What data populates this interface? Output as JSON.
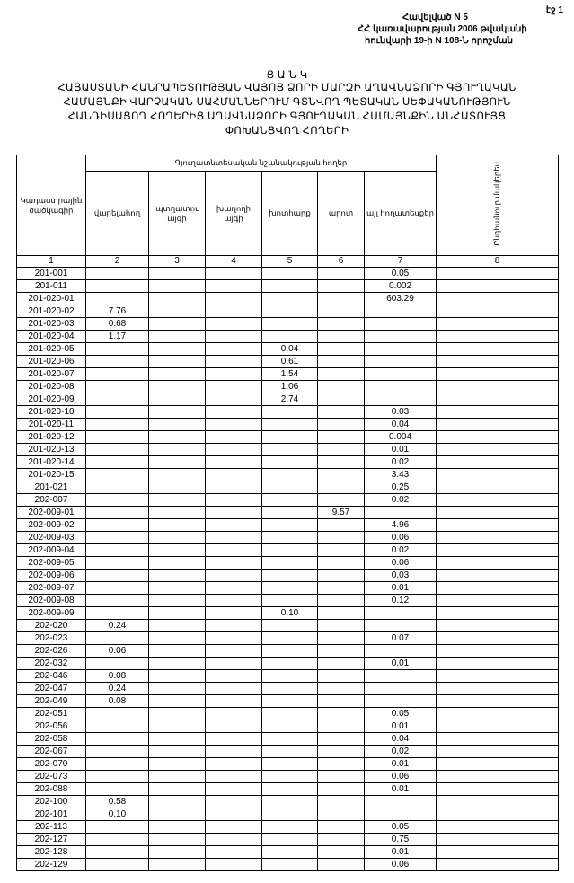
{
  "page_number": "էջ 1",
  "annex": {
    "line1": "Հավելված N 5",
    "line2": "ՀՀ կառավարության 2006 թվականի",
    "line3": "հունվարի 19-ի N 108-Ն որոշման"
  },
  "title": {
    "heading": "Ց Ա Ն Կ",
    "line1": "ՀԱՅԱՍՏԱՆԻ ՀԱՆՐԱՊԵՏՈՒԹՅԱՆ  ՎԱՅՈՑ ՁՈՐԻ ՄԱՐԶԻ ԱՂԱՎՆԱՁՈՐԻ ԳՅՈՒՂԱԿԱՆ",
    "line2": "ՀԱՄԱՅՆՔԻ ՎԱՐՉԱԿԱՆ ՍԱՀՄԱՆՆԵՐՈՒՄ  ԳՏՆՎՈՂ  ՊԵՏԱԿԱՆ ՍԵՓԱԿԱՆՈՒԹՅՈՒՆ",
    "line3": "ՀԱՆԴԻՍԱՑՈՂ ՀՈՂԵՐԻՑ ԱՂԱՎՆԱՁՈՐԻ ԳՅՈՒՂԱԿԱՆ ՀԱՄԱՅՆՔԻՆ ԱՆՀԱՏՈՒՅՑ",
    "line4": "ՓՈԽԱՆՑՎՈՂ   ՀՈՂԵՐԻ"
  },
  "table": {
    "group_header": "Գյուղատնտեսական նշանակության հողեր",
    "headers": [
      "Կադաստրային ծածկագիր",
      "վարելահող",
      "պտղատու այգի",
      "խաղողի այգի",
      "խոտհարք",
      "արոտ",
      "այլ հողատեսքեր",
      "Ընդհանուր մակերես"
    ],
    "column_numbers": [
      "1",
      "2",
      "3",
      "4",
      "5",
      "6",
      "7",
      "8"
    ],
    "rows": [
      [
        "201-001",
        "",
        "",
        "",
        "",
        "",
        "0.05",
        ""
      ],
      [
        "201-011",
        "",
        "",
        "",
        "",
        "",
        "0.002",
        ""
      ],
      [
        "201-020-01",
        "",
        "",
        "",
        "",
        "",
        "603.29",
        ""
      ],
      [
        "201-020-02",
        "7.76",
        "",
        "",
        "",
        "",
        "",
        ""
      ],
      [
        "201-020-03",
        "0.68",
        "",
        "",
        "",
        "",
        "",
        ""
      ],
      [
        "201-020-04",
        "1.17",
        "",
        "",
        "",
        "",
        "",
        ""
      ],
      [
        "201-020-05",
        "",
        "",
        "",
        "0.04",
        "",
        "",
        ""
      ],
      [
        "201-020-06",
        "",
        "",
        "",
        "0.61",
        "",
        "",
        ""
      ],
      [
        "201-020-07",
        "",
        "",
        "",
        "1.54",
        "",
        "",
        ""
      ],
      [
        "201-020-08",
        "",
        "",
        "",
        "1.06",
        "",
        "",
        ""
      ],
      [
        "201-020-09",
        "",
        "",
        "",
        "2.74",
        "",
        "",
        ""
      ],
      [
        "201-020-10",
        "",
        "",
        "",
        "",
        "",
        "0.03",
        ""
      ],
      [
        "201-020-11",
        "",
        "",
        "",
        "",
        "",
        "0.04",
        ""
      ],
      [
        "201-020-12",
        "",
        "",
        "",
        "",
        "",
        "0.004",
        ""
      ],
      [
        "201-020-13",
        "",
        "",
        "",
        "",
        "",
        "0.01",
        ""
      ],
      [
        "201-020-14",
        "",
        "",
        "",
        "",
        "",
        "0.02",
        ""
      ],
      [
        "201-020-15",
        "",
        "",
        "",
        "",
        "",
        "3.43",
        ""
      ],
      [
        "201-021",
        "",
        "",
        "",
        "",
        "",
        "0.25",
        ""
      ],
      [
        "202-007",
        "",
        "",
        "",
        "",
        "",
        "0.02",
        ""
      ],
      [
        "202-009-01",
        "",
        "",
        "",
        "",
        "9.57",
        "",
        ""
      ],
      [
        "202-009-02",
        "",
        "",
        "",
        "",
        "",
        "4.96",
        ""
      ],
      [
        "202-009-03",
        "",
        "",
        "",
        "",
        "",
        "0.06",
        ""
      ],
      [
        "202-009-04",
        "",
        "",
        "",
        "",
        "",
        "0.02",
        ""
      ],
      [
        "202-009-05",
        "",
        "",
        "",
        "",
        "",
        "0.06",
        ""
      ],
      [
        "202-009-06",
        "",
        "",
        "",
        "",
        "",
        "0.03",
        ""
      ],
      [
        "202-009-07",
        "",
        "",
        "",
        "",
        "",
        "0.01",
        ""
      ],
      [
        "202-009-08",
        "",
        "",
        "",
        "",
        "",
        "0.12",
        ""
      ],
      [
        "202-009-09",
        "",
        "",
        "",
        "0.10",
        "",
        "",
        ""
      ],
      [
        "202-020",
        "0.24",
        "",
        "",
        "",
        "",
        "",
        ""
      ],
      [
        "202-023",
        "",
        "",
        "",
        "",
        "",
        "0.07",
        ""
      ],
      [
        "202-026",
        "0.06",
        "",
        "",
        "",
        "",
        "",
        ""
      ],
      [
        "202-032",
        "",
        "",
        "",
        "",
        "",
        "0.01",
        ""
      ],
      [
        "202-046",
        "0.08",
        "",
        "",
        "",
        "",
        "",
        ""
      ],
      [
        "202-047",
        "0.24",
        "",
        "",
        "",
        "",
        "",
        ""
      ],
      [
        "202-049",
        "0.08",
        "",
        "",
        "",
        "",
        "",
        ""
      ],
      [
        "202-051",
        "",
        "",
        "",
        "",
        "",
        "0.05",
        ""
      ],
      [
        "202-056",
        "",
        "",
        "",
        "",
        "",
        "0.01",
        ""
      ],
      [
        "202-058",
        "",
        "",
        "",
        "",
        "",
        "0.04",
        ""
      ],
      [
        "202-067",
        "",
        "",
        "",
        "",
        "",
        "0.02",
        ""
      ],
      [
        "202-070",
        "",
        "",
        "",
        "",
        "",
        "0.01",
        ""
      ],
      [
        "202-073",
        "",
        "",
        "",
        "",
        "",
        "0.06",
        ""
      ],
      [
        "202-088",
        "",
        "",
        "",
        "",
        "",
        "0.01",
        ""
      ],
      [
        "202-100",
        "0.58",
        "",
        "",
        "",
        "",
        "",
        ""
      ],
      [
        "202-101",
        "0.10",
        "",
        "",
        "",
        "",
        "",
        ""
      ],
      [
        "202-113",
        "",
        "",
        "",
        "",
        "",
        "0.05",
        ""
      ],
      [
        "202-127",
        "",
        "",
        "",
        "",
        "",
        "0.75",
        ""
      ],
      [
        "202-128",
        "",
        "",
        "",
        "",
        "",
        "0.01",
        ""
      ],
      [
        "202-129",
        "",
        "",
        "",
        "",
        "",
        "0.06",
        ""
      ]
    ]
  }
}
